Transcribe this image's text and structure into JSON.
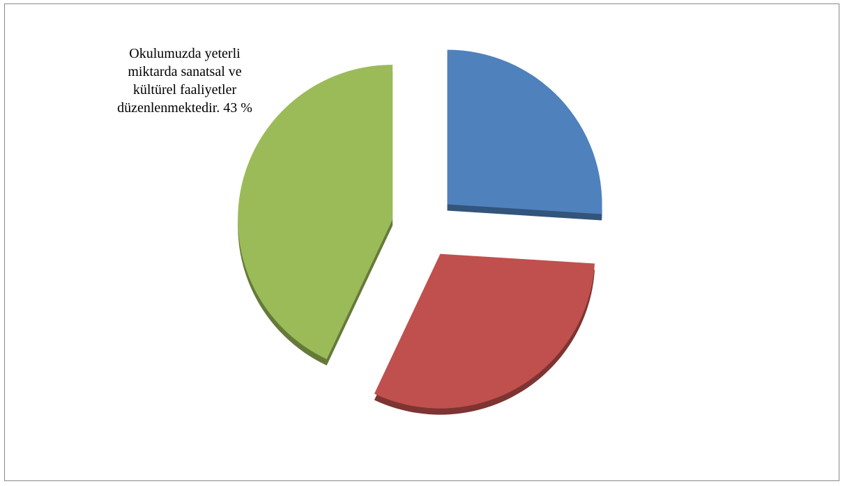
{
  "chart_data": {
    "type": "pie",
    "categories": [
      null,
      null,
      "Okulumuzda yeterli miktarda sanatsal ve kültürel faaliyetler düzenlenmektedir."
    ],
    "values": [
      26,
      31,
      43
    ],
    "value_labels": [
      null,
      null,
      "43 %"
    ],
    "colors": [
      "#4f81bd",
      "#c0504d",
      "#9bbb59"
    ]
  }
}
